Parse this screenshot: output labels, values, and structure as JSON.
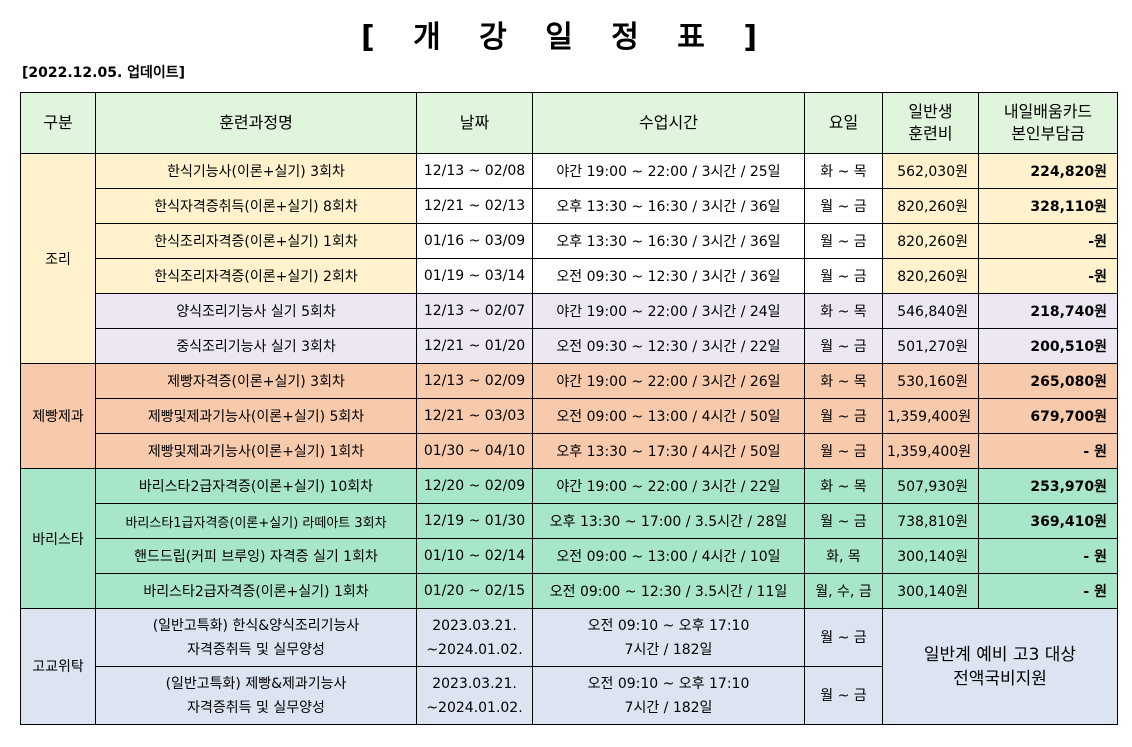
{
  "title": "[ 개 강 일 정 표 ]",
  "update": "[2022.12.05. 업데이트]",
  "headers": {
    "category": "구분",
    "course": "훈련과정명",
    "date": "날짜",
    "time": "수업시간",
    "days": "요일",
    "fee_line1": "일반생",
    "fee_line2": "훈련비",
    "card_line1": "내일배움카드",
    "card_line2": "본인부담금"
  },
  "groups": {
    "cooking": "조리",
    "baking": "제빵제과",
    "barista": "바리스타",
    "highschool": "고교위탁"
  },
  "rows": [
    {
      "course": "한식기능사(이론+실기) 3회차",
      "date": "12/13 ~ 02/08",
      "time": "야간 19:00 ~ 22:00 / 3시간 / 25일",
      "days": "화 ~ 목",
      "fee": "562,030원",
      "card": "224,820원"
    },
    {
      "course": "한식자격증취득(이론+실기) 8회차",
      "date": "12/21 ~ 02/13",
      "time": "오후 13:30 ~ 16:30 / 3시간 / 36일",
      "days": "월 ~ 금",
      "fee": "820,260원",
      "card": "328,110원"
    },
    {
      "course": "한식조리자격증(이론+실기) 1회차",
      "date": "01/16 ~ 03/09",
      "time": "오후 13:30 ~ 16:30 / 3시간 / 36일",
      "days": "월 ~ 금",
      "fee": "820,260원",
      "card": "-원"
    },
    {
      "course": "한식조리자격증(이론+실기) 2회차",
      "date": "01/19 ~ 03/14",
      "time": "오전 09:30 ~ 12:30 / 3시간 / 36일",
      "days": "월 ~ 금",
      "fee": "820,260원",
      "card": "-원"
    },
    {
      "course": "양식조리기능사 실기 5회차",
      "date": "12/13 ~ 02/07",
      "time": "야간 19:00 ~ 22:00 / 3시간 / 24일",
      "days": "화 ~ 목",
      "fee": "546,840원",
      "card": "218,740원"
    },
    {
      "course": "중식조리기능사 실기 3회차",
      "date": "12/21 ~ 01/20",
      "time": "오전 09:30 ~ 12:30 / 3시간 / 22일",
      "days": "월 ~ 금",
      "fee": "501,270원",
      "card": "200,510원"
    },
    {
      "course": "제빵자격증(이론+실기) 3회차",
      "date": "12/13 ~ 02/09",
      "time": "야간 19:00 ~ 22:00 / 3시간 / 26일",
      "days": "화 ~ 목",
      "fee": "530,160원",
      "card": "265,080원"
    },
    {
      "course": "제빵및제과기능사(이론+실기) 5회차",
      "date": "12/21 ~ 03/03",
      "time": "오전 09:00 ~ 13:00 / 4시간 / 50일",
      "days": "월 ~ 금",
      "fee": "1,359,400원",
      "card": "679,700원"
    },
    {
      "course": "제빵및제과기능사(이론+실기) 1회차",
      "date": "01/30 ~ 04/10",
      "time": "오후 13:30 ~ 17:30 / 4시간 / 50일",
      "days": "월 ~ 금",
      "fee": "1,359,400원",
      "card": "- 원"
    },
    {
      "course": "바리스타2급자격증(이론+실기) 10회차",
      "date": "12/20 ~ 02/09",
      "time": "야간 19:00 ~ 22:00 / 3시간 / 22일",
      "days": "화 ~ 목",
      "fee": "507,930원",
      "card": "253,970원"
    },
    {
      "course": "바리스타1급자격증(이론+실기) 라떼아트 3회차",
      "date": "12/19 ~ 01/30",
      "time": "오후 13:30 ~ 17:00 / 3.5시간 / 28일",
      "days": "월 ~ 금",
      "fee": "738,810원",
      "card": "369,410원"
    },
    {
      "course": "핸드드립(커피 브루잉) 자격증 실기 1회차",
      "date": "01/10 ~ 02/14",
      "time": "오전 09:00 ~ 13:00 / 4시간 / 10일",
      "days": "화, 목",
      "fee": "300,140원",
      "card": "- 원"
    },
    {
      "course": "바리스타2급자격증(이론+실기) 1회차",
      "date": "01/20 ~ 02/15",
      "time": "오전 09:00 ~ 12:30 / 3.5시간 / 11일",
      "days": "월, 수, 금",
      "fee": "300,140원",
      "card": "- 원"
    }
  ],
  "highschool_rows": [
    {
      "course_line1": "(일반고특화) 한식&양식조리기능사",
      "course_line2": "자격증취득 및 실무양성",
      "date_line1": "2023.03.21.",
      "date_line2": "~2024.01.02.",
      "time_line1": "오전 09:10 ~ 오후 17:10",
      "time_line2": "7시간 / 182일",
      "days": "월 ~ 금"
    },
    {
      "course_line1": "(일반고특화) 제빵&제과기능사",
      "course_line2": "자격증취득 및 실무양성",
      "date_line1": "2023.03.21.",
      "date_line2": "~2024.01.02.",
      "time_line1": "오전 09:10 ~ 오후 17:10",
      "time_line2": "7시간 / 182일",
      "days": "월 ~ 금"
    }
  ],
  "highschool_note": {
    "line1": "일반계 예비 고3 대상",
    "line2": "전액국비지원"
  },
  "colors": {
    "header": "#dff5dc",
    "cooking": "#fff2cc",
    "cooking_alt": "#ece7f3",
    "baking": "#f8caac",
    "barista": "#a8e6c9",
    "highschool": "#dce4f2"
  }
}
